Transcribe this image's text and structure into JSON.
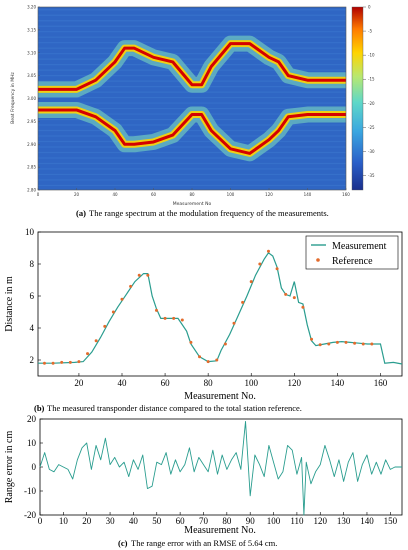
{
  "chart_data": [
    {
      "type": "heatmap",
      "caption_label": "(a)",
      "caption": "The range spectrum at the modulation frequency of the measurements.",
      "xlabel": "Measurement No",
      "ylabel": "Beat Frequency in MHz",
      "xlim": [
        0,
        160
      ],
      "ylim": [
        2.8,
        3.2
      ],
      "xticks": [
        "0",
        "20",
        "40",
        "60",
        "80",
        "100",
        "120",
        "140",
        "160"
      ],
      "yticks": [
        "3.20",
        "3.15",
        "3.10",
        "3.05",
        "3.00",
        "2.95",
        "2.90",
        "2.85",
        "2.80"
      ],
      "colorbar_ticks": [
        "0",
        "-5",
        "-10",
        "-15",
        "-20",
        "-25",
        "-30",
        "-35"
      ],
      "colorbar_range": [
        -38,
        0
      ],
      "colors": {
        "low": "#1f4fa8",
        "mid": "#5fd8c8",
        "high": "#d40000"
      }
    },
    {
      "type": "line",
      "caption_label": "(b)",
      "caption": "The measured transponder distance compared to the total station reference.",
      "xlabel": "Measurement No.",
      "ylabel": "Distance in m",
      "xlim": [
        1,
        170
      ],
      "ylim": [
        1,
        10
      ],
      "xticks": [
        "20",
        "40",
        "60",
        "80",
        "100",
        "120",
        "140",
        "160"
      ],
      "yticks": [
        "10",
        "8",
        "6",
        "4",
        "2"
      ],
      "legend_position": "top-right",
      "series": [
        {
          "name": "Measurement",
          "color": "#2a9d8f",
          "style": "line",
          "x": [
            1,
            8,
            18,
            22,
            26,
            30,
            34,
            38,
            42,
            46,
            50,
            52,
            54,
            56,
            58,
            62,
            66,
            70,
            72,
            76,
            80,
            84,
            86,
            90,
            94,
            98,
            102,
            106,
            108,
            110,
            112,
            114,
            116,
            118,
            120,
            122,
            124,
            126,
            128,
            130,
            134,
            138,
            142,
            146,
            150,
            154,
            158,
            160,
            162,
            166,
            170
          ],
          "y": [
            1.8,
            1.8,
            1.85,
            1.9,
            2.5,
            3.4,
            4.4,
            5.3,
            6.1,
            6.9,
            7.4,
            7.4,
            6.0,
            5.2,
            4.6,
            4.6,
            4.6,
            3.8,
            3.0,
            2.2,
            1.9,
            1.95,
            2.6,
            3.6,
            4.8,
            6.0,
            7.3,
            8.3,
            8.7,
            8.5,
            7.8,
            6.5,
            6.1,
            6.0,
            6.9,
            5.6,
            5.5,
            4.2,
            3.2,
            2.9,
            3.0,
            3.1,
            3.15,
            3.1,
            3.05,
            3.0,
            3.0,
            3.0,
            1.8,
            1.85,
            1.75
          ]
        },
        {
          "name": "Reference",
          "color": "#e36b2c",
          "style": "markers",
          "x": [
            4,
            8,
            12,
            16,
            20,
            24,
            28,
            32,
            36,
            40,
            44,
            48,
            52,
            56,
            60,
            64,
            68,
            72,
            76,
            80,
            84,
            88,
            92,
            96,
            100,
            104,
            108,
            112,
            116,
            120,
            124,
            128,
            132,
            136,
            140,
            144,
            148,
            152,
            156
          ],
          "y": [
            1.8,
            1.8,
            1.85,
            1.85,
            1.9,
            2.4,
            3.2,
            4.1,
            5.0,
            5.8,
            6.6,
            7.3,
            7.3,
            5.1,
            4.6,
            4.6,
            4.5,
            3.1,
            2.2,
            1.9,
            2.0,
            3.0,
            4.3,
            5.6,
            6.9,
            8.0,
            8.8,
            7.7,
            6.1,
            5.9,
            5.3,
            3.3,
            2.95,
            3.0,
            3.1,
            3.1,
            3.05,
            3.0,
            3.0
          ]
        }
      ]
    },
    {
      "type": "line",
      "caption_label": "(c)",
      "caption": "The range error with an RMSE of 5.64 cm.",
      "xlabel": "Measurement No.",
      "ylabel": "Range error in cm",
      "xlim": [
        0,
        155
      ],
      "ylim": [
        -20,
        20
      ],
      "xticks": [
        "0",
        "10",
        "20",
        "30",
        "40",
        "50",
        "60",
        "70",
        "80",
        "90",
        "100",
        "110",
        "120",
        "130",
        "140",
        "150"
      ],
      "yticks": [
        "20",
        "10",
        "0",
        "-10",
        "-20"
      ],
      "series": [
        {
          "name": "",
          "color": "#2a9d8f",
          "x": [
            0,
            2,
            4,
            6,
            8,
            10,
            12,
            14,
            16,
            18,
            20,
            22,
            24,
            26,
            28,
            30,
            32,
            34,
            36,
            38,
            40,
            42,
            44,
            46,
            48,
            50,
            52,
            54,
            56,
            58,
            60,
            62,
            64,
            66,
            68,
            70,
            72,
            74,
            76,
            78,
            80,
            82,
            84,
            86,
            88,
            90,
            92,
            94,
            96,
            98,
            100,
            102,
            104,
            106,
            108,
            110,
            112,
            113,
            114,
            116,
            118,
            120,
            122,
            124,
            126,
            128,
            130,
            132,
            134,
            136,
            138,
            140,
            142,
            144,
            146,
            148,
            150,
            152,
            155
          ],
          "y": [
            0,
            6,
            -1,
            -2,
            1,
            0,
            -1,
            -5,
            3,
            8,
            10,
            -1,
            9,
            3,
            12,
            1,
            4,
            0,
            2,
            -4,
            3,
            -1,
            5,
            -9,
            -8,
            2,
            1,
            6,
            -3,
            3,
            -2,
            1,
            8,
            -2,
            4,
            1,
            -2,
            7,
            -3,
            5,
            -1,
            3,
            6,
            -1,
            19,
            -12,
            5,
            1,
            -4,
            9,
            2,
            -5,
            -2,
            9,
            7,
            -3,
            4,
            -20,
            2,
            -7,
            -2,
            1,
            9,
            3,
            -4,
            3,
            -6,
            2,
            6,
            -6,
            1,
            5,
            -3,
            2,
            -3,
            3,
            -1,
            0,
            0
          ]
        }
      ]
    }
  ]
}
